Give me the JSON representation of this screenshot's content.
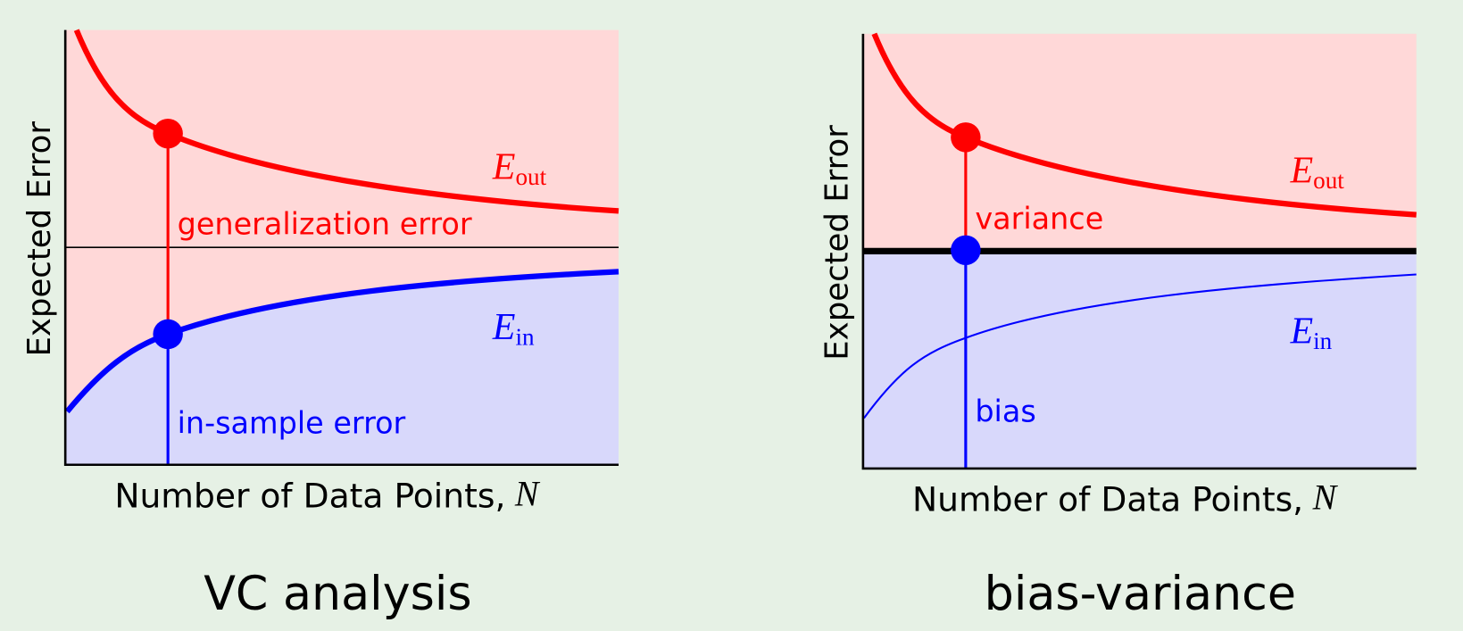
{
  "panels": [
    {
      "title": "VC analysis",
      "y_label": "Expected Error",
      "x_label": "Number of Data Points,",
      "x_symbol": "N",
      "e_out": {
        "base": "E",
        "sub": "out"
      },
      "e_in": {
        "base": "E",
        "sub": "in"
      },
      "upper_annotation": "generalization error",
      "lower_annotation": "in-sample error"
    },
    {
      "title": "bias-variance",
      "y_label": "Expected Error",
      "x_label": "Number of Data Points,",
      "x_symbol": "N",
      "e_out": {
        "base": "E",
        "sub": "out"
      },
      "e_in": {
        "base": "E",
        "sub": "in"
      },
      "upper_annotation": "variance",
      "lower_annotation": "bias"
    }
  ]
}
